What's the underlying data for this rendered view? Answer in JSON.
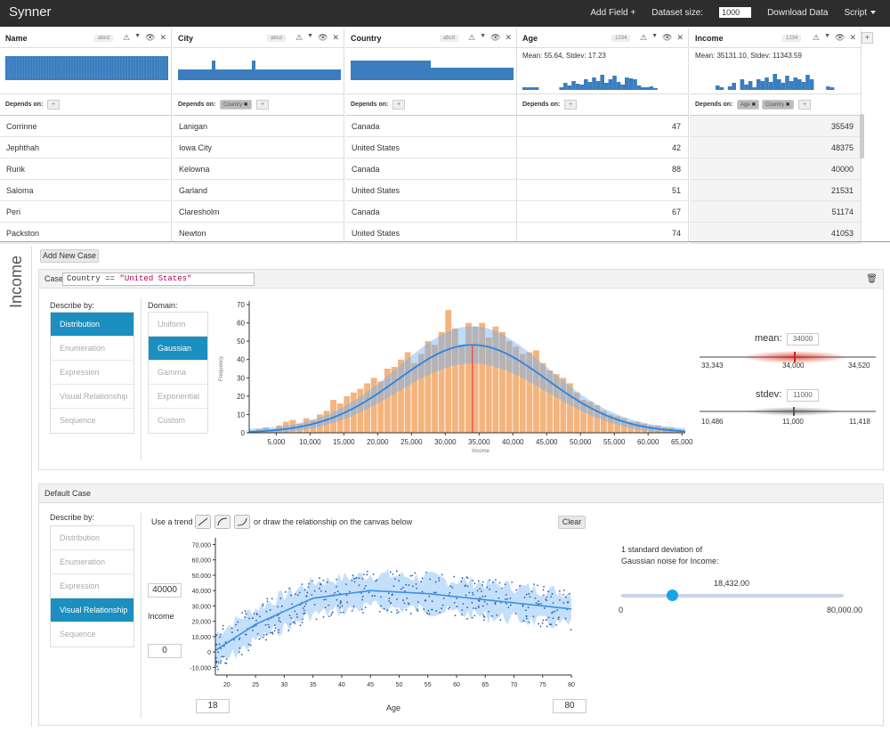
{
  "app": {
    "title": "Synner",
    "add_field": "Add Field +",
    "dataset_size_label": "Dataset size:",
    "dataset_size_value": "1000",
    "download": "Download Data",
    "script": "Script"
  },
  "columns": [
    {
      "name": "Name",
      "type": "abcd",
      "depends": [],
      "values": [
        "Corrinne",
        "Jephthah",
        "Rurik",
        "Saloma",
        "Peri",
        "Packston"
      ]
    },
    {
      "name": "City",
      "type": "abcd",
      "depends": [
        "Country"
      ],
      "values": [
        "Lanigan",
        "Iowa City",
        "Kelowna",
        "Garland",
        "Claresholm",
        "Newton"
      ]
    },
    {
      "name": "Country",
      "type": "abcd",
      "depends": [],
      "values": [
        "Canada",
        "United States",
        "Canada",
        "United States",
        "Canada",
        "United States"
      ]
    },
    {
      "name": "Age",
      "type": "1234",
      "stats": "Mean: 55.64, Stdev: 17.23",
      "depends": [],
      "values": [
        "47",
        "42",
        "88",
        "51",
        "67",
        "74"
      ]
    },
    {
      "name": "Income",
      "type": "1234",
      "stats": "Mean: 35131.10, Stdev: 11343.59",
      "depends": [
        "Age",
        "Country"
      ],
      "values": [
        "35549",
        "48375",
        "40000",
        "21531",
        "51174",
        "41053"
      ]
    }
  ],
  "depends_label": "Depends on:",
  "income_panel": {
    "side_title": "Income",
    "add_case": "Add New Case",
    "case_label": "Case",
    "case_expr_prefix": "Country == ",
    "case_expr_string": "\"United States\"",
    "describe_by": "Describe by:",
    "describe_items": [
      "Distribution",
      "Enumeration",
      "Expression",
      "Visual Relationship",
      "Sequence"
    ],
    "domain_label": "Domain:",
    "domain_items": [
      "Uniform",
      "Gaussian",
      "Gamma",
      "Exponential",
      "Custom"
    ],
    "mean": {
      "label": "mean:",
      "value": "34000",
      "min": "33,343",
      "mid": "34,000",
      "max": "34,520"
    },
    "stdev": {
      "label": "stdev:",
      "value": "11000",
      "min": "10,486",
      "mid": "11,000",
      "max": "11,418"
    }
  },
  "default_case": {
    "title": "Default Case",
    "describe_by": "Describe by:",
    "describe_items": [
      "Distribution",
      "Enumeration",
      "Expression",
      "Visual Relationship",
      "Sequence"
    ],
    "trend_text": "Use a trend",
    "trend_suffix": "or draw the relationship on the canvas below",
    "clear": "Clear",
    "y_value": "40000",
    "y_label": "Income",
    "y_min_value": "0",
    "x_min_value": "18",
    "x_max_value": "80",
    "noise_text_1": "1 standard deviation of",
    "noise_text_2": "Gaussian noise for Income:",
    "noise_value": "18,432.00",
    "noise_fraction": 0.23,
    "noise_min": "0",
    "noise_max": "80,000.00"
  },
  "chart_data": [
    {
      "type": "bar",
      "xlabel": "Income",
      "ylabel": "Frequency",
      "ylim": [
        0,
        70
      ],
      "yticks": [
        0,
        10,
        20,
        30,
        40,
        50,
        60,
        70
      ],
      "xlim": [
        1000,
        65500
      ],
      "xticks": [
        "5,000",
        "10,000",
        "15,000",
        "20,000",
        "25,000",
        "30,000",
        "35,000",
        "40,000",
        "45,000",
        "50,000",
        "55,000",
        "60,000",
        "65,000"
      ],
      "bin_width": 1000,
      "bins_start": 2000,
      "values": [
        2,
        3,
        2,
        4,
        6,
        7,
        5,
        8,
        7,
        10,
        12,
        18,
        16,
        20,
        22,
        24,
        27,
        30,
        28,
        35,
        36,
        40,
        44,
        38,
        43,
        50,
        48,
        55,
        67,
        57,
        48,
        60,
        58,
        60,
        52,
        58,
        55,
        50,
        47,
        43,
        44,
        45,
        38,
        34,
        32,
        30,
        27,
        22,
        18,
        17,
        15,
        12,
        10,
        9,
        8,
        6,
        6,
        5,
        4,
        4,
        3,
        3,
        2
      ],
      "mean_line": 34000,
      "color": "#f4b47e",
      "curve_color": "#2a84e0"
    },
    {
      "type": "scatter",
      "xlabel": "Age",
      "ylabel": "Income",
      "xlim": [
        18,
        80
      ],
      "ylim": [
        -15000,
        72000
      ],
      "xticks": [
        20,
        25,
        30,
        35,
        40,
        45,
        50,
        55,
        60,
        65,
        70,
        75,
        80
      ],
      "yticks": [
        "-10,000",
        "0",
        "10,000",
        "20,000",
        "30,000",
        "40,000",
        "50,000",
        "60,000",
        "70,000"
      ],
      "trend": [
        [
          18,
          1000
        ],
        [
          25,
          18000
        ],
        [
          35,
          35000
        ],
        [
          45,
          40000
        ],
        [
          55,
          38000
        ],
        [
          65,
          34000
        ],
        [
          80,
          28000
        ]
      ],
      "color": "#3b8fe8"
    }
  ]
}
